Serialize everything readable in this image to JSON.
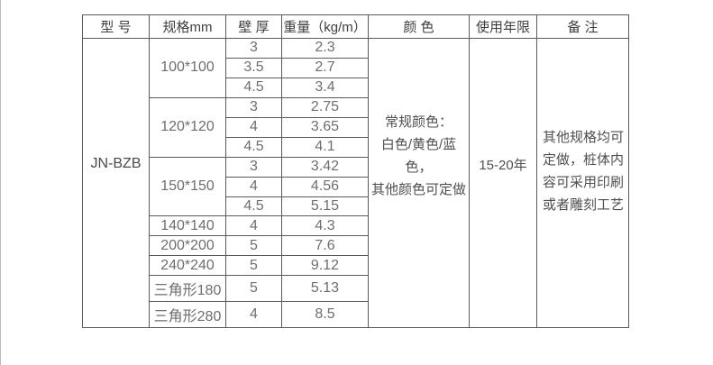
{
  "page": {
    "edge_line_color": "#b9b9b9",
    "background": "#ffffff",
    "border_color": "#5a5a5a"
  },
  "table": {
    "headers": [
      {
        "key": "model",
        "label": "型 号"
      },
      {
        "key": "spec",
        "label": "规格mm"
      },
      {
        "key": "wall",
        "label": "壁 厚"
      },
      {
        "key": "weight",
        "label": "重量（kg/m）"
      },
      {
        "key": "color",
        "label": "颜 色"
      },
      {
        "key": "life",
        "label": "使用年限"
      },
      {
        "key": "notes",
        "label": "备 注"
      }
    ],
    "model": "JN-BZB",
    "spec_groups": [
      {
        "spec": "100*100",
        "rows": [
          {
            "wall": "3",
            "weight": "2.3"
          },
          {
            "wall": "3.5",
            "weight": "2.7"
          },
          {
            "wall": "4.5",
            "weight": "3.4"
          }
        ]
      },
      {
        "spec": "120*120",
        "rows": [
          {
            "wall": "3",
            "weight": "2.75"
          },
          {
            "wall": "4",
            "weight": "3.65"
          },
          {
            "wall": "4.5",
            "weight": "4.1"
          }
        ]
      },
      {
        "spec": "150*150",
        "rows": [
          {
            "wall": "3",
            "weight": "3.42"
          },
          {
            "wall": "4",
            "weight": "4.56"
          },
          {
            "wall": "4.5",
            "weight": "5.15"
          }
        ]
      },
      {
        "spec": "140*140",
        "rows": [
          {
            "wall": "4",
            "weight": "4.3"
          }
        ]
      },
      {
        "spec": "200*200",
        "rows": [
          {
            "wall": "5",
            "weight": "7.6"
          }
        ]
      },
      {
        "spec": "240*240",
        "rows": [
          {
            "wall": "5",
            "weight": "9.12"
          }
        ]
      },
      {
        "spec": "三角形180",
        "rows": [
          {
            "wall": "5",
            "weight": "5.13"
          }
        ]
      },
      {
        "spec": "三角形280",
        "rows": [
          {
            "wall": "4",
            "weight": "8.5"
          }
        ]
      }
    ],
    "color_text": "常规颜色：\n白色/黄色/蓝色，\n其他颜色可定做",
    "service_life": "15-20年",
    "notes_text": "其他规格均可\n定做，桩体内\n容可采用印刷\n或者雕刻工艺"
  }
}
